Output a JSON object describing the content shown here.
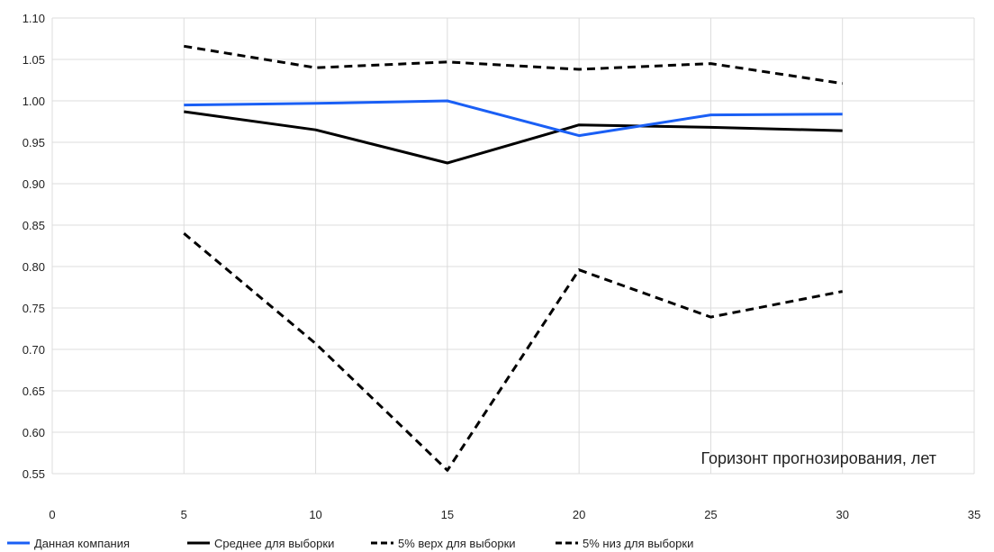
{
  "chart_data": {
    "type": "line",
    "annotation": "Горизонт прогнозирования, лет",
    "xlim": [
      0,
      35
    ],
    "ylim": [
      0.55,
      1.1
    ],
    "x_ticks": [
      0,
      5,
      10,
      15,
      20,
      25,
      30,
      35
    ],
    "y_ticks": [
      0.55,
      0.6,
      0.65,
      0.7,
      0.75,
      0.8,
      0.85,
      0.9,
      0.95,
      1.0,
      1.05,
      1.1
    ],
    "grid": true,
    "legend_position": "bottom",
    "x": [
      5,
      10,
      15,
      20,
      25,
      30
    ],
    "series": [
      {
        "name": "Данная компания",
        "color": "#1a5ff5",
        "dash": "solid",
        "values": [
          0.995,
          0.997,
          1.0,
          0.958,
          0.983,
          0.984
        ]
      },
      {
        "name": "Среднее для выборки",
        "color": "#000000",
        "dash": "solid",
        "values": [
          0.987,
          0.965,
          0.925,
          0.971,
          0.968,
          0.964
        ]
      },
      {
        "name": "5% верх для выборки",
        "color": "#000000",
        "dash": "dashed",
        "values": [
          1.066,
          1.04,
          1.047,
          1.038,
          1.045,
          1.021
        ]
      },
      {
        "name": "5% низ для выборки",
        "color": "#000000",
        "dash": "dashed",
        "values": [
          0.84,
          0.707,
          0.554,
          0.796,
          0.739,
          0.77
        ]
      }
    ]
  }
}
